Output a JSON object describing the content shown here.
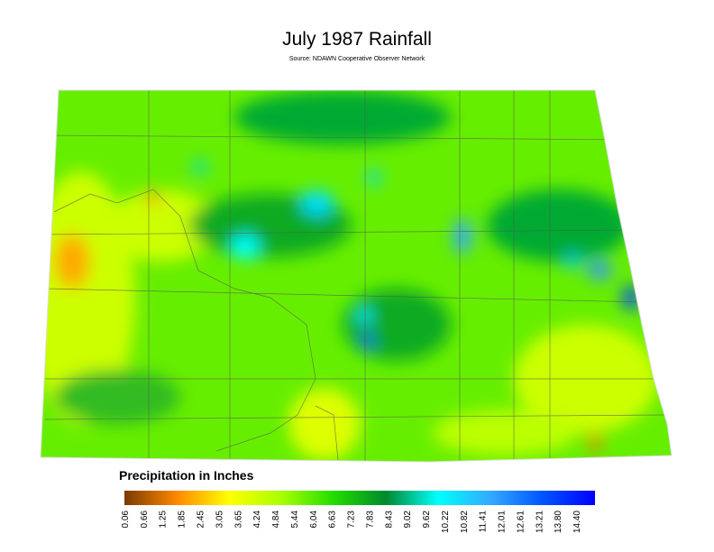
{
  "title": "July 1987 Rainfall",
  "subtitle": "Source: NDAWN Cooperative Observer Network",
  "legend": {
    "title": "Precipitation in Inches",
    "lim": [
      0.06,
      15.0
    ],
    "colors": [
      "#7a3a00",
      "#ff8800",
      "#ffff00",
      "#aaff00",
      "#22dd00",
      "#008a2e",
      "#00ffff",
      "#33aaff",
      "#0055ff",
      "#0000ff"
    ],
    "ticks": [
      0.06,
      0.66,
      1.25,
      1.85,
      2.45,
      3.05,
      3.65,
      4.24,
      4.84,
      5.44,
      6.04,
      6.63,
      7.23,
      7.83,
      8.43,
      9.02,
      9.62,
      10.22,
      10.82,
      11.41,
      12.01,
      12.61,
      13.21,
      {
        "value": 13.8,
        "label": "13.80"
      },
      {
        "value": 14.4,
        "label": "14.40"
      }
    ]
  }
}
